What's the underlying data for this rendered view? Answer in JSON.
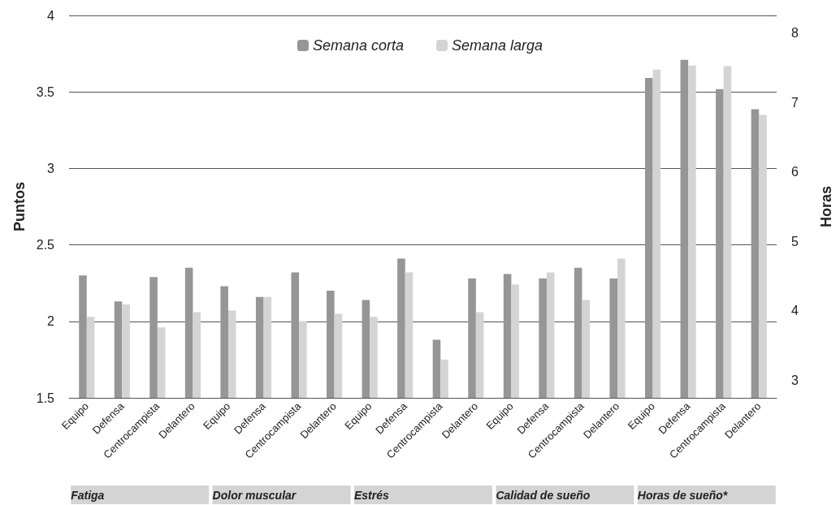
{
  "chart_data": {
    "type": "bar",
    "categories": [
      "Equipo",
      "Defensa",
      "Centrocampista",
      "Delantero",
      "Equipo",
      "Defensa",
      "Centrocampista",
      "Delantero",
      "Equipo",
      "Defensa",
      "Centrocampista",
      "Delantero",
      "Equipo",
      "Defensa",
      "Centrocampista",
      "Delantero",
      "Equipo",
      "Defensa",
      "Centrocampista",
      "Delantero"
    ],
    "series": [
      {
        "name": "Semana corta",
        "color": "#969696",
        "values": [
          2.3,
          2.13,
          2.29,
          2.35,
          2.23,
          2.16,
          2.32,
          2.2,
          2.14,
          2.41,
          1.88,
          2.28,
          2.31,
          2.28,
          2.35,
          2.28,
          null,
          null,
          null,
          null
        ]
      },
      {
        "name": "Semana larga",
        "color": "#d4d4d4",
        "values": [
          2.03,
          2.11,
          1.96,
          2.06,
          2.07,
          2.16,
          2.0,
          2.05,
          2.03,
          2.32,
          1.75,
          2.06,
          2.24,
          2.32,
          2.14,
          2.41,
          null,
          null,
          null,
          null
        ]
      },
      {
        "color": "#969696",
        "axis": "y2",
        "values": [
          null,
          null,
          null,
          null,
          null,
          null,
          null,
          null,
          null,
          null,
          null,
          null,
          null,
          null,
          null,
          null,
          7.35,
          7.61,
          7.19,
          6.9
        ]
      },
      {
        "color": "#d4d4d4",
        "axis": "y2",
        "values": [
          null,
          null,
          null,
          null,
          null,
          null,
          null,
          null,
          null,
          null,
          null,
          null,
          null,
          null,
          null,
          null,
          7.47,
          7.53,
          7.52,
          6.82
        ]
      }
    ],
    "ylabel": "Puntos",
    "y2label": "Horas",
    "ylim": [
      1.5,
      4
    ],
    "yticks": [
      1.5,
      2,
      2.5,
      3,
      3.5,
      4
    ],
    "y2lim": [
      2.75,
      8.25
    ],
    "y2ticks": [
      3,
      4,
      5,
      6,
      7,
      8
    ],
    "grid": "y",
    "legend": "top",
    "annotations": [
      "Fatiga",
      "Dolor muscular",
      "Estrés",
      "Calidad de sueño",
      "Horas de sueño*"
    ]
  }
}
